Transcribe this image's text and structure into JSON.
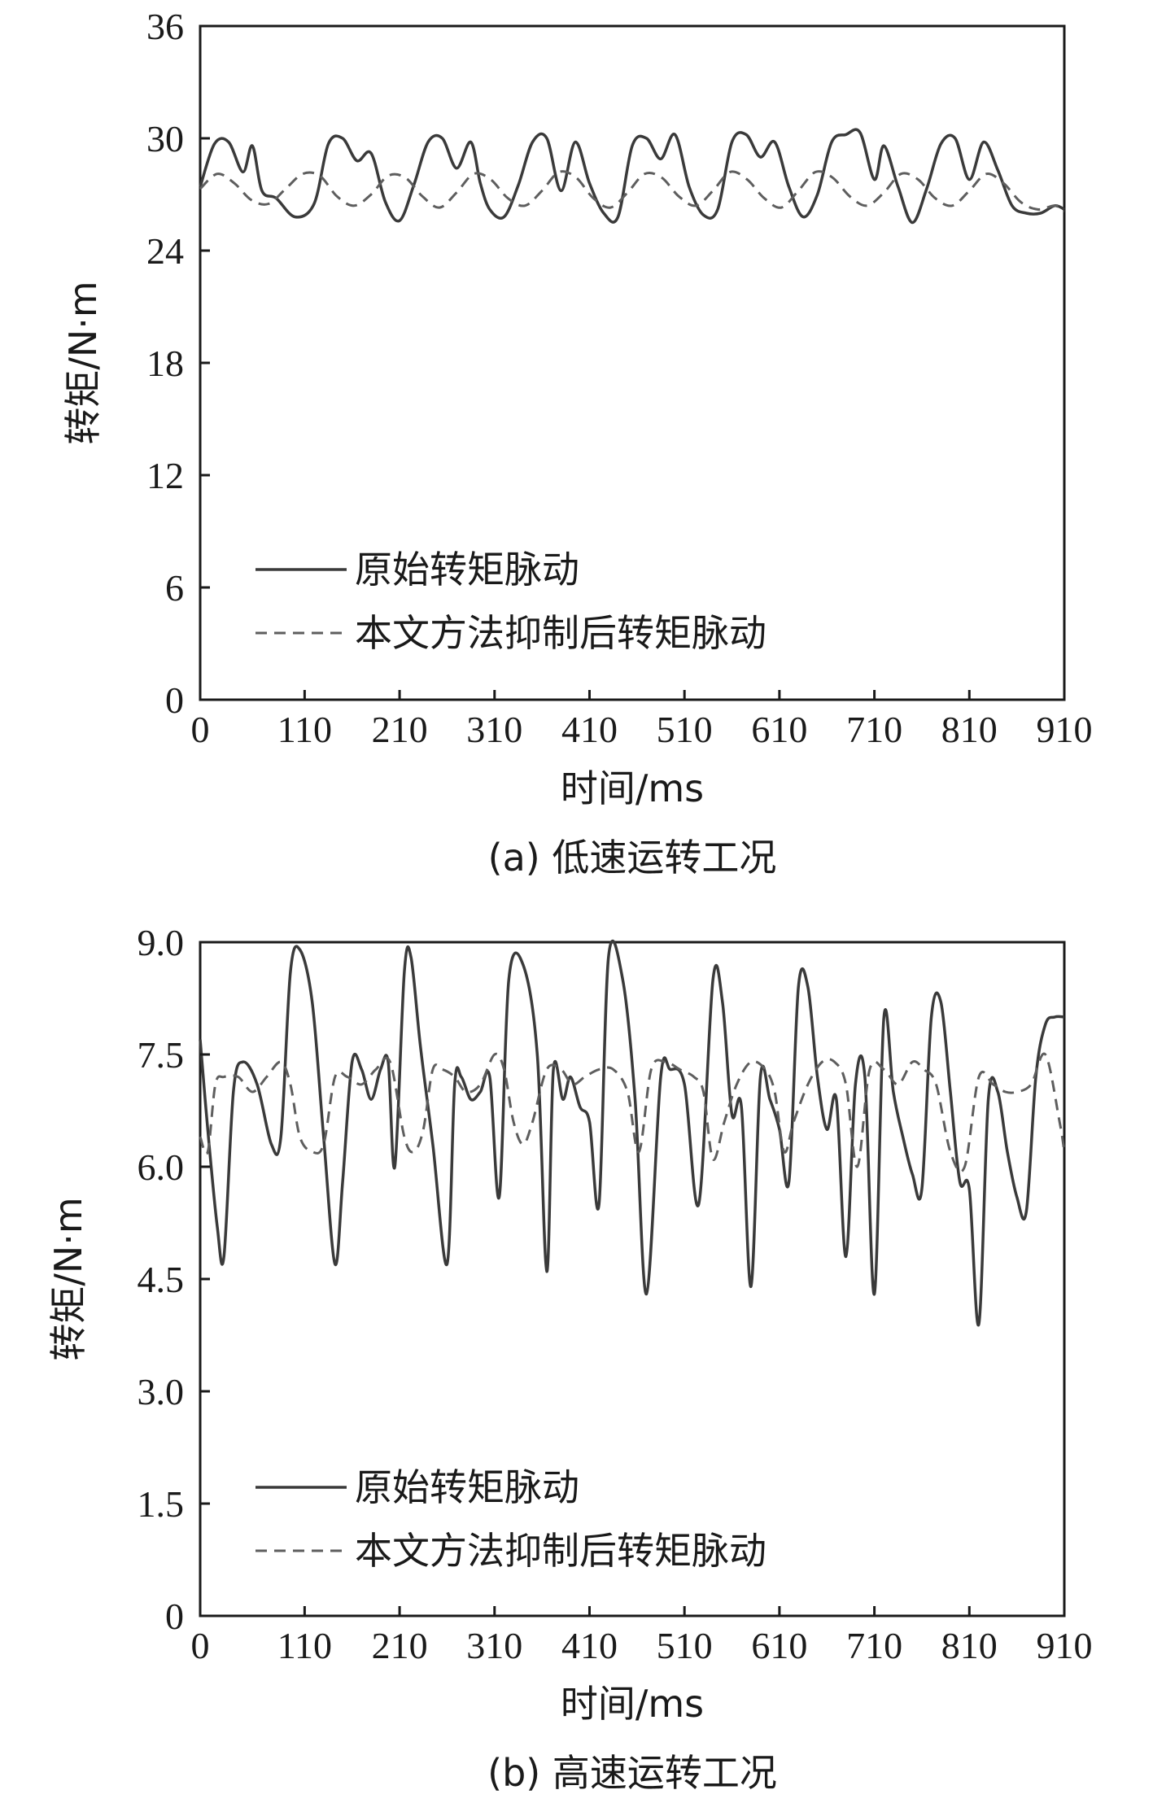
{
  "chart_data": [
    {
      "type": "line",
      "caption": "(a) 低速运转工况",
      "xlabel": "时间/ms",
      "ylabel": "转矩/N·m",
      "xlim": [
        0,
        910
      ],
      "ylim": [
        0,
        36
      ],
      "xticks": [
        0,
        110,
        210,
        310,
        410,
        510,
        610,
        710,
        810,
        910
      ],
      "xtick_labels": [
        "0",
        "110",
        "210",
        "310",
        "410",
        "510",
        "610",
        "710",
        "810",
        "910"
      ],
      "yticks": [
        0,
        6,
        12,
        18,
        24,
        30,
        36
      ],
      "ytick_labels": [
        "0",
        "6",
        "12",
        "18",
        "24",
        "30",
        "36"
      ],
      "grid": false,
      "legend_position": "lower-left",
      "series": [
        {
          "name": "原始转矩脉动",
          "style": "solid",
          "color": "#3a3a3a",
          "x": [
            0,
            15,
            30,
            45,
            55,
            65,
            80,
            100,
            120,
            135,
            150,
            165,
            180,
            195,
            210,
            225,
            240,
            255,
            270,
            285,
            295,
            305,
            320,
            335,
            350,
            365,
            380,
            395,
            410,
            425,
            440,
            455,
            470,
            485,
            500,
            515,
            530,
            545,
            560,
            575,
            590,
            605,
            620,
            635,
            650,
            665,
            680,
            695,
            710,
            720,
            735,
            750,
            765,
            780,
            795,
            810,
            825,
            840,
            855,
            870,
            885,
            900,
            910
          ],
          "y": [
            27.4,
            29.7,
            29.8,
            28.2,
            29.6,
            27.2,
            26.8,
            25.8,
            26.5,
            29.7,
            30.0,
            28.8,
            29.2,
            26.6,
            25.6,
            27.5,
            29.8,
            30.0,
            28.4,
            29.8,
            27.6,
            26.2,
            25.8,
            27.5,
            29.8,
            30.0,
            27.2,
            29.8,
            27.6,
            26.0,
            25.8,
            29.6,
            30.0,
            28.9,
            30.2,
            27.4,
            25.9,
            26.2,
            29.8,
            30.2,
            29.0,
            29.8,
            27.4,
            25.8,
            27.0,
            29.8,
            30.2,
            30.3,
            27.8,
            29.6,
            27.4,
            25.5,
            27.3,
            29.7,
            30.0,
            27.8,
            29.8,
            28.3,
            26.4,
            26.0,
            26.0,
            26.4,
            26.2
          ]
        },
        {
          "name": "本文方法抑制后转矩脉动",
          "style": "dashed",
          "color": "#5e5e5e",
          "x": [
            0,
            18,
            36,
            54,
            72,
            90,
            108,
            126,
            144,
            162,
            180,
            198,
            216,
            234,
            252,
            270,
            288,
            306,
            324,
            342,
            360,
            378,
            396,
            414,
            432,
            450,
            468,
            486,
            504,
            522,
            540,
            558,
            576,
            594,
            612,
            630,
            648,
            666,
            684,
            702,
            720,
            738,
            756,
            774,
            792,
            810,
            828,
            846,
            864,
            882,
            900,
            910
          ],
          "y": [
            27.3,
            28.1,
            27.6,
            26.7,
            26.5,
            27.3,
            28.1,
            28.0,
            26.9,
            26.4,
            27.0,
            28.0,
            27.9,
            26.9,
            26.3,
            27.1,
            28.1,
            27.8,
            26.8,
            26.4,
            27.2,
            28.2,
            27.9,
            26.8,
            26.3,
            27.1,
            28.1,
            27.9,
            26.9,
            26.4,
            27.2,
            28.2,
            27.8,
            26.8,
            26.3,
            27.2,
            28.2,
            27.9,
            26.9,
            26.4,
            27.1,
            28.1,
            27.8,
            26.8,
            26.4,
            27.2,
            28.1,
            27.6,
            26.6,
            26.2,
            26.4,
            26.1
          ]
        }
      ]
    },
    {
      "type": "line",
      "caption": "(b) 高速运转工况",
      "xlabel": "时间/ms",
      "ylabel": "转矩/N·m",
      "xlim": [
        0,
        910
      ],
      "ylim": [
        0,
        9
      ],
      "xticks": [
        0,
        110,
        210,
        310,
        410,
        510,
        610,
        710,
        810,
        910
      ],
      "xtick_labels": [
        "0",
        "110",
        "210",
        "310",
        "410",
        "510",
        "610",
        "710",
        "810",
        "910"
      ],
      "yticks": [
        0,
        1.5,
        3,
        4.5,
        6,
        7.5,
        9
      ],
      "ytick_labels": [
        "0",
        "1.5",
        "3.0",
        "4.5",
        "6.0",
        "7.5",
        "9.0"
      ],
      "grid": false,
      "legend_position": "lower-left",
      "series": [
        {
          "name": "原始转矩脉动",
          "style": "solid",
          "color": "#3a3a3a",
          "x": [
            0,
            8,
            18,
            25,
            35,
            45,
            60,
            75,
            85,
            95,
            105,
            118,
            130,
            142,
            150,
            160,
            170,
            180,
            190,
            198,
            205,
            215,
            222,
            232,
            245,
            260,
            268,
            275,
            285,
            295,
            305,
            315,
            325,
            340,
            355,
            365,
            372,
            382,
            390,
            400,
            410,
            420,
            430,
            445,
            458,
            470,
            485,
            495,
            510,
            525,
            540,
            550,
            560,
            570,
            580,
            590,
            600,
            610,
            620,
            630,
            640,
            650,
            660,
            670,
            680,
            690,
            700,
            710,
            720,
            730,
            740,
            750,
            760,
            770,
            780,
            790,
            800,
            810,
            820,
            830,
            840,
            850,
            860,
            870,
            880,
            890,
            900,
            910
          ],
          "y": [
            7.7,
            6.5,
            5.2,
            4.8,
            7.0,
            7.4,
            7.1,
            6.3,
            6.4,
            8.6,
            8.9,
            8.2,
            6.4,
            4.7,
            5.8,
            7.4,
            7.3,
            6.9,
            7.3,
            7.4,
            6.0,
            8.6,
            8.8,
            7.6,
            6.3,
            4.7,
            7.1,
            7.2,
            6.9,
            7.0,
            7.2,
            5.6,
            8.5,
            8.7,
            7.5,
            4.6,
            7.3,
            6.9,
            7.2,
            6.8,
            6.6,
            5.5,
            8.8,
            8.5,
            6.9,
            4.3,
            7.2,
            7.3,
            7.1,
            5.5,
            8.5,
            8.2,
            6.7,
            6.8,
            4.4,
            7.2,
            6.9,
            6.5,
            5.8,
            8.4,
            8.4,
            7.2,
            6.5,
            6.9,
            4.8,
            7.1,
            7.2,
            4.3,
            8.0,
            7.0,
            6.4,
            5.9,
            5.7,
            8.0,
            8.2,
            7.0,
            5.8,
            5.7,
            3.9,
            6.9,
            7.0,
            6.2,
            5.6,
            5.4,
            7.2,
            7.9,
            8.0,
            8.0
          ]
        },
        {
          "name": "本文方法抑制后转矩脉动",
          "style": "dashed",
          "color": "#5e5e5e",
          "x": [
            0,
            8,
            16,
            25,
            40,
            55,
            70,
            85,
            95,
            105,
            118,
            130,
            142,
            155,
            170,
            185,
            200,
            215,
            225,
            235,
            245,
            255,
            268,
            280,
            295,
            310,
            320,
            330,
            340,
            350,
            365,
            380,
            392,
            405,
            420,
            435,
            450,
            462,
            475,
            490,
            505,
            520,
            530,
            540,
            552,
            565,
            580,
            595,
            605,
            615,
            625,
            640,
            655,
            668,
            680,
            692,
            705,
            720,
            735,
            750,
            762,
            775,
            790,
            805,
            820,
            835,
            848,
            860,
            875,
            890,
            905,
            910
          ],
          "y": [
            6.4,
            6.2,
            7.1,
            7.2,
            7.2,
            7.0,
            7.2,
            7.4,
            7.1,
            6.4,
            6.2,
            6.3,
            7.2,
            7.2,
            7.1,
            7.3,
            7.4,
            6.4,
            6.2,
            6.5,
            7.3,
            7.3,
            7.2,
            7.0,
            7.1,
            7.5,
            7.3,
            6.6,
            6.3,
            6.6,
            7.3,
            7.3,
            7.1,
            7.2,
            7.3,
            7.3,
            7.0,
            6.2,
            7.3,
            7.4,
            7.3,
            7.2,
            7.0,
            6.1,
            6.6,
            7.1,
            7.4,
            7.3,
            7.0,
            6.2,
            6.6,
            7.1,
            7.4,
            7.4,
            7.1,
            6.0,
            7.3,
            7.3,
            7.1,
            7.4,
            7.3,
            7.1,
            6.2,
            6.0,
            7.2,
            7.1,
            7.0,
            7.0,
            7.1,
            7.5,
            6.6,
            6.2
          ]
        }
      ]
    }
  ]
}
